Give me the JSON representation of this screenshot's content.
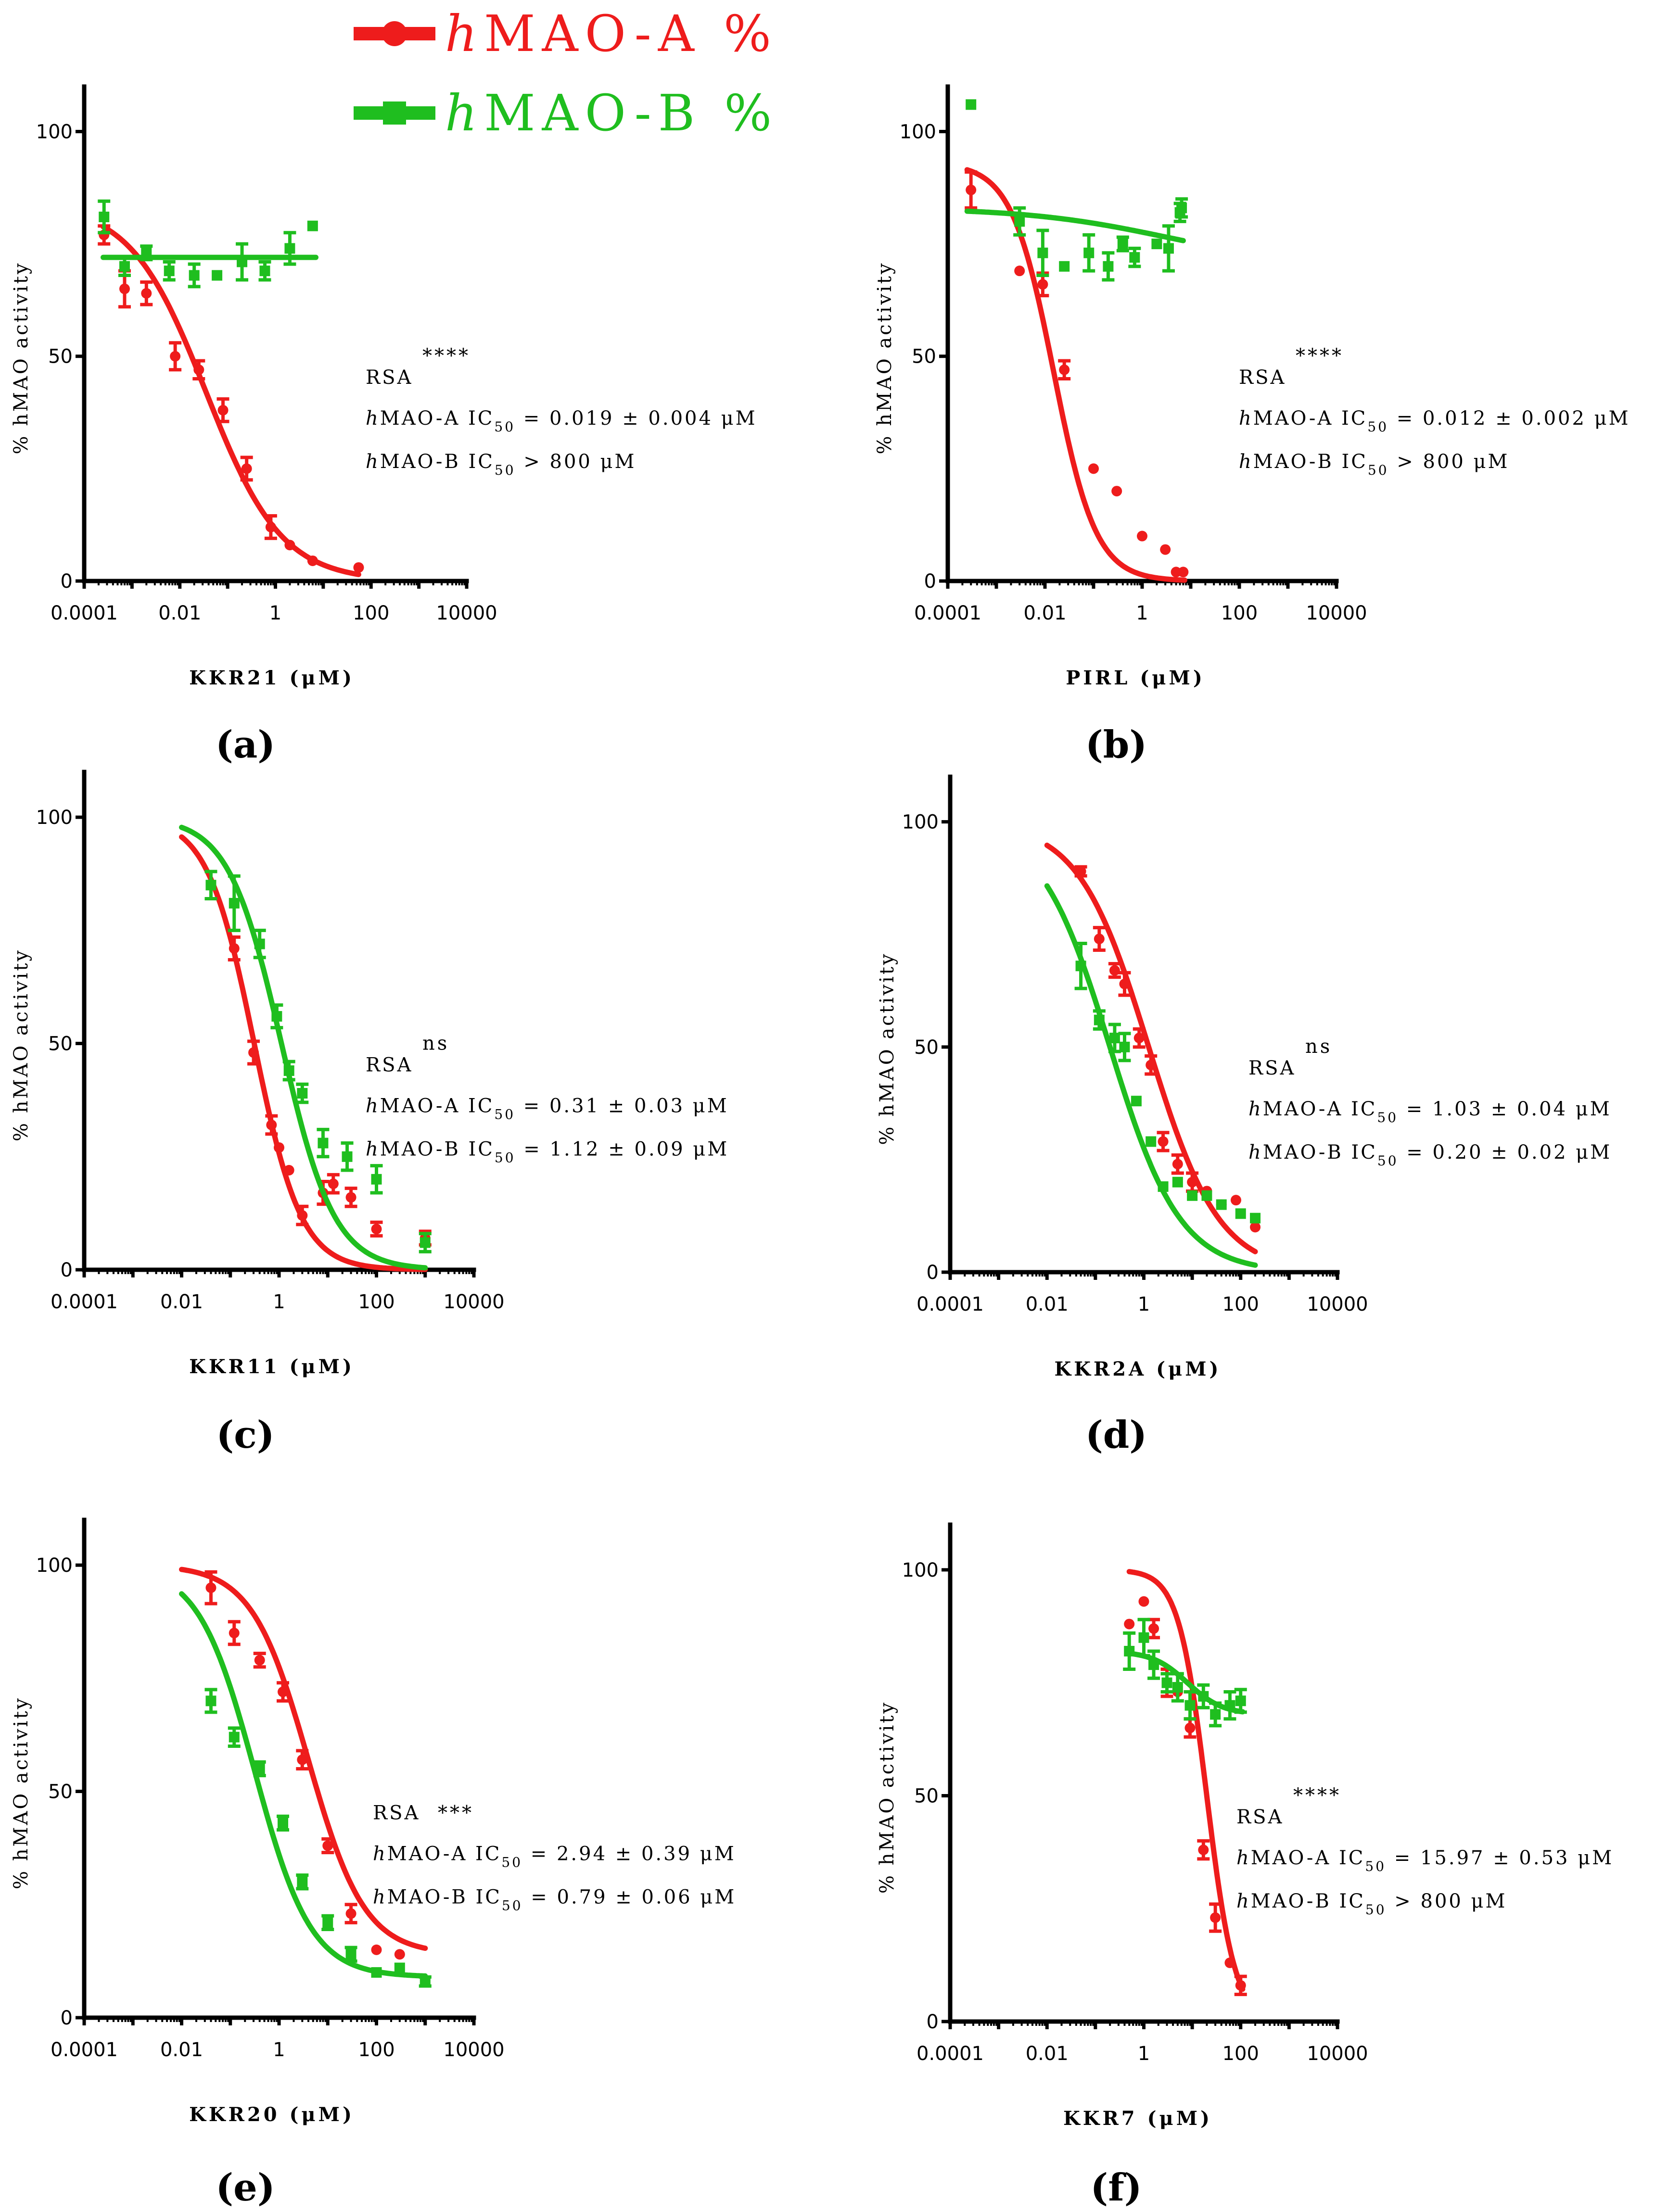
{
  "colors": {
    "hmao_a": "#ee1c1c",
    "hmao_b": "#1fbe1f"
  },
  "legend": [
    {
      "series": "hmao_a",
      "prefix": "h",
      "rest": "MAO-A %",
      "marker": "circle"
    },
    {
      "series": "hmao_b",
      "prefix": "h",
      "rest": "MAO-B %",
      "marker": "square"
    }
  ],
  "y_axis_label": "% hMAO activity",
  "chart_data": [
    {
      "type": "scatter",
      "panel": "(a)",
      "xlabel": "KKR21 (μM)",
      "ylabel": "% hMAO activity",
      "xscale": "log",
      "xlim": [
        0.0001,
        10000
      ],
      "ylim": [
        0,
        110
      ],
      "xticks": [
        "0.0001",
        "0.01",
        "1",
        "100",
        "10000"
      ],
      "yticks": [
        0,
        50,
        100
      ],
      "significance": "****",
      "rsa_label": "RSA",
      "ic50": [
        {
          "enzyme": "hMAO-A",
          "relation": "=",
          "value": "0.019 ± 0.004 μM"
        },
        {
          "enzyme": "hMAO-B",
          "relation": ">",
          "value": "800 μM"
        }
      ],
      "series": [
        {
          "name": "hMAO-A %",
          "key": "hmao_a",
          "points": [
            [
              0.00026,
              77,
              2
            ],
            [
              0.0007,
              65,
              4
            ],
            [
              0.002,
              64,
              2.5
            ],
            [
              0.008,
              50,
              3
            ],
            [
              0.025,
              47,
              2
            ],
            [
              0.08,
              38,
              2.5
            ],
            [
              0.25,
              25,
              2.5
            ],
            [
              0.8,
              12,
              2.5
            ],
            [
              2,
              8,
              0
            ],
            [
              6,
              4.5,
              0
            ],
            [
              55,
              3,
              0
            ]
          ],
          "fit": {
            "top": 84,
            "bottom": 0,
            "log_ec50": -1.45,
            "hill": 0.55,
            "xrange": [
              0.00025,
              55
            ]
          }
        },
        {
          "name": "hMAO-B %",
          "key": "hmao_b",
          "points": [
            [
              0.00026,
              81,
              3.5
            ],
            [
              0.0007,
              70,
              2
            ],
            [
              0.002,
              73,
              1.5
            ],
            [
              0.006,
              69,
              2
            ],
            [
              0.02,
              68,
              2.5
            ],
            [
              0.06,
              68,
              0
            ],
            [
              0.2,
              71,
              4
            ],
            [
              0.6,
              69,
              2
            ],
            [
              2,
              74,
              3.5
            ],
            [
              6,
              79,
              0
            ]
          ],
          "fit": {
            "top": 72,
            "bottom": 72,
            "log_ec50": 0,
            "hill": 1,
            "xrange": [
              0.00025,
              7
            ]
          }
        }
      ]
    },
    {
      "type": "scatter",
      "panel": "(b)",
      "xlabel": "PIRL (μM)",
      "ylabel": "% hMAO activity",
      "xscale": "log",
      "xlim": [
        0.0001,
        10000
      ],
      "ylim": [
        0,
        110
      ],
      "xticks": [
        "0.0001",
        "0.01",
        "1",
        "100",
        "10000"
      ],
      "yticks": [
        0,
        50,
        100
      ],
      "significance": "****",
      "rsa_label": "RSA",
      "ic50": [
        {
          "enzyme": "hMAO-A",
          "relation": "=",
          "value": "0.012 ± 0.002 μM"
        },
        {
          "enzyme": "hMAO-B",
          "relation": ">",
          "value": "800 μM"
        }
      ],
      "series": [
        {
          "name": "hMAO-A %",
          "key": "hmao_a",
          "points": [
            [
              0.0003,
              87,
              4
            ],
            [
              0.003,
              69,
              0
            ],
            [
              0.009,
              66,
              2.5
            ],
            [
              0.025,
              47,
              2
            ],
            [
              0.1,
              25,
              0
            ],
            [
              0.3,
              20,
              0
            ],
            [
              1,
              10,
              0
            ],
            [
              3,
              7,
              0
            ],
            [
              5,
              2,
              0
            ],
            [
              7,
              2,
              0
            ]
          ],
          "fit": {
            "top": 93,
            "bottom": 0,
            "log_ec50": -1.82,
            "hill": 1.0,
            "xrange": [
              0.00025,
              7.5
            ]
          }
        },
        {
          "name": "hMAO-B %",
          "key": "hmao_b",
          "points": [
            [
              0.0003,
              106,
              0
            ],
            [
              0.003,
              80,
              3
            ],
            [
              0.009,
              73,
              5
            ],
            [
              0.025,
              70,
              0
            ],
            [
              0.08,
              73,
              4
            ],
            [
              0.2,
              70,
              3
            ],
            [
              0.4,
              75,
              1.5
            ],
            [
              0.7,
              72,
              2
            ],
            [
              2,
              75,
              0
            ],
            [
              3.5,
              74,
              5
            ],
            [
              6,
              82,
              2
            ],
            [
              6.5,
              83,
              2
            ]
          ],
          "fit": {
            "top": 83,
            "bottom": 70,
            "log_ec50": 0.5,
            "hill": 0.3,
            "xrange": [
              0.00025,
              7
            ]
          }
        }
      ]
    },
    {
      "type": "scatter",
      "panel": "(c)",
      "xlabel": "KKR11 (μM)",
      "ylabel": "% hMAO activity",
      "xscale": "log",
      "xlim": [
        0.0001,
        10000
      ],
      "ylim": [
        0,
        110
      ],
      "xticks": [
        "0.0001",
        "0.01",
        "1",
        "100",
        "10000"
      ],
      "yticks": [
        0,
        50,
        100
      ],
      "significance": "ns",
      "rsa_label": "RSA",
      "ic50": [
        {
          "enzyme": "hMAO-A",
          "relation": "=",
          "value": "0.31 ± 0.03 μM"
        },
        {
          "enzyme": "hMAO-B",
          "relation": "=",
          "value": "1.12 ± 0.09 μM"
        }
      ],
      "series": [
        {
          "name": "hMAO-A %",
          "key": "hmao_a",
          "points": [
            [
              0.04,
              85,
              0
            ],
            [
              0.12,
              71,
              2.5
            ],
            [
              0.3,
              48,
              2.5
            ],
            [
              0.7,
              32,
              2
            ],
            [
              1,
              27,
              0
            ],
            [
              1.6,
              22,
              0
            ],
            [
              3,
              12,
              2
            ],
            [
              8,
              17,
              2.5
            ],
            [
              13,
              19,
              2
            ],
            [
              30,
              16,
              2
            ],
            [
              100,
              9,
              1.5
            ],
            [
              1000,
              7,
              1.5
            ]
          ],
          "fit": {
            "top": 100,
            "bottom": 0,
            "log_ec50": -0.51,
            "hill": 0.9,
            "xrange": [
              0.01,
              1000
            ]
          }
        },
        {
          "name": "hMAO-B %",
          "key": "hmao_b",
          "points": [
            [
              0.04,
              85,
              3
            ],
            [
              0.12,
              81,
              6
            ],
            [
              0.4,
              72,
              3
            ],
            [
              0.9,
              56,
              2.5
            ],
            [
              1.6,
              44,
              2
            ],
            [
              3,
              39,
              2
            ],
            [
              8,
              28,
              3
            ],
            [
              25,
              25,
              3
            ],
            [
              100,
              20,
              3
            ],
            [
              1000,
              6,
              2
            ]
          ],
          "fit": {
            "top": 100,
            "bottom": 0,
            "log_ec50": 0.05,
            "hill": 0.8,
            "xrange": [
              0.01,
              1000
            ]
          }
        }
      ]
    },
    {
      "type": "scatter",
      "panel": "(d)",
      "xlabel": "KKR2A (μM)",
      "ylabel": "% hMAO activity",
      "xscale": "log",
      "xlim": [
        0.0001,
        10000
      ],
      "ylim": [
        0,
        110
      ],
      "xticks": [
        "0.0001",
        "0.01",
        "1",
        "100",
        "10000"
      ],
      "yticks": [
        0,
        50,
        100
      ],
      "significance": "ns",
      "rsa_label": "RSA",
      "ic50": [
        {
          "enzyme": "hMAO-A",
          "relation": "=",
          "value": "1.03 ± 0.04 μM"
        },
        {
          "enzyme": "hMAO-B",
          "relation": "=",
          "value": "0.20 ± 0.02 μM"
        }
      ],
      "series": [
        {
          "name": "hMAO-A %",
          "key": "hmao_a",
          "points": [
            [
              0.05,
              89,
              1
            ],
            [
              0.12,
              74,
              2.5
            ],
            [
              0.25,
              67,
              1.5
            ],
            [
              0.4,
              64,
              2.5
            ],
            [
              0.8,
              52,
              2
            ],
            [
              1.4,
              46,
              2
            ],
            [
              2.5,
              29,
              2
            ],
            [
              5,
              24,
              2
            ],
            [
              10,
              20,
              2
            ],
            [
              20,
              18,
              0
            ],
            [
              40,
              15,
              0
            ],
            [
              80,
              16,
              0
            ],
            [
              200,
              10,
              0
            ]
          ],
          "fit": {
            "top": 100,
            "bottom": 0,
            "log_ec50": 0.1,
            "hill": 0.6,
            "xrange": [
              0.01,
              200
            ]
          }
        },
        {
          "name": "hMAO-B %",
          "key": "hmao_b",
          "points": [
            [
              0.05,
              68,
              5
            ],
            [
              0.12,
              56,
              2
            ],
            [
              0.25,
              52,
              3
            ],
            [
              0.4,
              50,
              3
            ],
            [
              0.7,
              38,
              0
            ],
            [
              1.4,
              29,
              0
            ],
            [
              2.5,
              19,
              0
            ],
            [
              5,
              20,
              0
            ],
            [
              10,
              17,
              0
            ],
            [
              20,
              17,
              0
            ],
            [
              40,
              15,
              0
            ],
            [
              100,
              13,
              0
            ],
            [
              200,
              12,
              0
            ]
          ],
          "fit": {
            "top": 100,
            "bottom": 0,
            "log_ec50": -0.7,
            "hill": 0.6,
            "xrange": [
              0.01,
              200
            ]
          }
        }
      ]
    },
    {
      "type": "scatter",
      "panel": "(e)",
      "xlabel": "KKR20 (μM)",
      "ylabel": "% hMAO activity",
      "xscale": "log",
      "xlim": [
        0.0001,
        10000
      ],
      "ylim": [
        0,
        110
      ],
      "xticks": [
        "0.0001",
        "0.01",
        "1",
        "100",
        "10000"
      ],
      "yticks": [
        0,
        50,
        100
      ],
      "significance": "***",
      "rsa_label": "RSA",
      "ic50": [
        {
          "enzyme": "hMAO-A",
          "relation": "=",
          "value": "2.94 ± 0.39 μM"
        },
        {
          "enzyme": "hMAO-B",
          "relation": "=",
          "value": "0.79 ± 0.06 μM"
        }
      ],
      "series": [
        {
          "name": "hMAO-A %",
          "key": "hmao_a",
          "points": [
            [
              0.04,
              95,
              3.5
            ],
            [
              0.12,
              85,
              2.5
            ],
            [
              0.4,
              79,
              1.5
            ],
            [
              1.2,
              72,
              2
            ],
            [
              3,
              57,
              2
            ],
            [
              10,
              38,
              1.5
            ],
            [
              30,
              23,
              2
            ],
            [
              100,
              15,
              0
            ],
            [
              300,
              14,
              0
            ]
          ],
          "fit": {
            "top": 100,
            "bottom": 14,
            "log_ec50": 0.6,
            "hill": 0.75,
            "xrange": [
              0.01,
              1000
            ]
          }
        },
        {
          "name": "hMAO-B %",
          "key": "hmao_b",
          "points": [
            [
              0.04,
              70,
              2.5
            ],
            [
              0.12,
              62,
              2
            ],
            [
              0.4,
              55,
              1.5
            ],
            [
              1.2,
              43,
              1.5
            ],
            [
              3,
              30,
              1.5
            ],
            [
              10,
              21,
              1.5
            ],
            [
              30,
              14,
              1.5
            ],
            [
              100,
              10,
              0
            ],
            [
              300,
              11,
              0
            ],
            [
              1000,
              8,
              1
            ]
          ],
          "fit": {
            "top": 100,
            "bottom": 9,
            "log_ec50": -0.5,
            "hill": 0.75,
            "xrange": [
              0.01,
              1000
            ]
          }
        }
      ]
    },
    {
      "type": "scatter",
      "panel": "(f)",
      "xlabel": "KKR7 (μM)",
      "ylabel": "% hMAO activity",
      "xscale": "log",
      "xlim": [
        0.0001,
        10000
      ],
      "ylim": [
        0,
        110
      ],
      "xticks": [
        "0.0001",
        "0.01",
        "1",
        "100",
        "10000"
      ],
      "yticks": [
        0,
        50,
        100
      ],
      "significance": "****",
      "rsa_label": "RSA",
      "ic50": [
        {
          "enzyme": "hMAO-A",
          "relation": "=",
          "value": "15.97 ± 0.53 μM"
        },
        {
          "enzyme": "hMAO-B",
          "relation": ">",
          "value": "800 μM"
        }
      ],
      "series": [
        {
          "name": "hMAO-A %",
          "key": "hmao_a",
          "points": [
            [
              0.5,
              88,
              0
            ],
            [
              1,
              93,
              0
            ],
            [
              1.6,
              87,
              2
            ],
            [
              3,
              75,
              3
            ],
            [
              5,
              73,
              0
            ],
            [
              9,
              65,
              2
            ],
            [
              17,
              38,
              2
            ],
            [
              30,
              23,
              3
            ],
            [
              60,
              13,
              0
            ],
            [
              100,
              8,
              2
            ]
          ],
          "fit": {
            "top": 100,
            "bottom": 0,
            "log_ec50": 1.3,
            "hill": 1.5,
            "xrange": [
              0.5,
              110
            ]
          }
        },
        {
          "name": "hMAO-B %",
          "key": "hmao_b",
          "points": [
            [
              0.5,
              82,
              4
            ],
            [
              1,
              85,
              4
            ],
            [
              1.6,
              79,
              3
            ],
            [
              3,
              75,
              2
            ],
            [
              5,
              74,
              3
            ],
            [
              9,
              70,
              3
            ],
            [
              17,
              72,
              2.5
            ],
            [
              30,
              68,
              2.5
            ],
            [
              60,
              70,
              3
            ],
            [
              100,
              71,
              2.5
            ]
          ],
          "fit": {
            "top": 82,
            "bottom": 68,
            "log_ec50": 0.9,
            "hill": 1.2,
            "xrange": [
              0.5,
              110
            ]
          }
        }
      ]
    }
  ]
}
